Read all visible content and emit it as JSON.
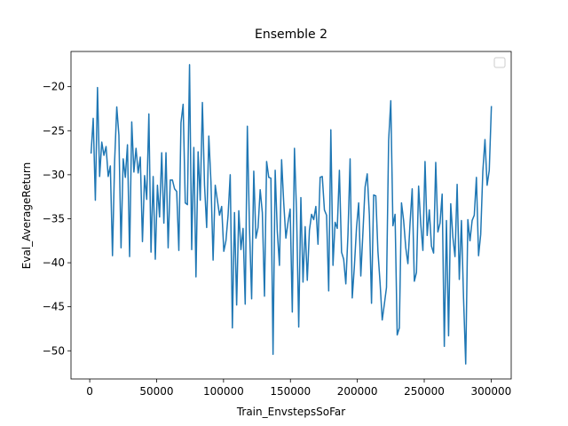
{
  "chart_data": {
    "type": "line",
    "title": "Ensemble 2",
    "x_label": "Train_EnvstepsSoFar",
    "y_label": "Eval_AverageReturn",
    "x": [
      1000,
      2600,
      4200,
      5800,
      7400,
      9000,
      10600,
      12200,
      13800,
      15400,
      17000,
      18600,
      20200,
      21800,
      23400,
      25000,
      26600,
      28200,
      29800,
      31400,
      33000,
      34600,
      36200,
      37800,
      39400,
      41000,
      42600,
      44200,
      45800,
      47400,
      49000,
      50600,
      52200,
      53800,
      55400,
      57000,
      58600,
      60200,
      61800,
      63400,
      65000,
      66600,
      68200,
      69800,
      71400,
      73000,
      74600,
      76200,
      77800,
      79400,
      81000,
      82600,
      84200,
      85800,
      87400,
      89000,
      90600,
      92200,
      93800,
      95400,
      97000,
      98600,
      100200,
      101800,
      103400,
      105000,
      106600,
      108200,
      109800,
      111400,
      113000,
      114600,
      116200,
      117800,
      119400,
      121000,
      122600,
      124200,
      125800,
      127400,
      129000,
      130600,
      132200,
      133800,
      135400,
      137000,
      138600,
      140200,
      141800,
      143400,
      145000,
      146600,
      148200,
      149800,
      151400,
      153000,
      154600,
      156200,
      157800,
      159400,
      161000,
      162600,
      164200,
      165800,
      167400,
      169000,
      170600,
      172200,
      173800,
      175400,
      177000,
      178600,
      180200,
      181800,
      183400,
      185000,
      186600,
      188200,
      189800,
      191400,
      193000,
      194600,
      196200,
      197800,
      199400,
      201000,
      202600,
      204200,
      205800,
      207400,
      209000,
      210600,
      212200,
      213800,
      215400,
      217000,
      218600,
      220200,
      221800,
      223400,
      225000,
      226600,
      228200,
      229800,
      231400,
      233000,
      234600,
      236200,
      237800,
      239400,
      241000,
      242600,
      244200,
      245800,
      247400,
      249000,
      250600,
      252200,
      253800,
      255400,
      257000,
      258600,
      260200,
      261800,
      263400,
      265000,
      266600,
      268200,
      269800,
      271400,
      273000,
      274600,
      276200,
      277800,
      279400,
      281000,
      282600,
      284200,
      285800,
      287400,
      289000,
      290600,
      292200,
      293800,
      295400,
      297000,
      298600,
      300200
    ],
    "series": [
      {
        "color": "#1f77b4",
        "values": [
          -27.6,
          -23.6,
          -32.9,
          -20.1,
          -30.2,
          -26.3,
          -27.8,
          -26.8,
          -30.2,
          -29,
          -39.2,
          -28.5,
          -22.3,
          -25.5,
          -38.3,
          -28.2,
          -30.3,
          -26.6,
          -39.3,
          -24,
          -29.7,
          -27,
          -29.8,
          -28,
          -37.6,
          -30.1,
          -32.8,
          -23.1,
          -38.8,
          -30.2,
          -39.6,
          -31.2,
          -34.8,
          -27.5,
          -35.5,
          -27.5,
          -38.3,
          -30.6,
          -30.6,
          -31.6,
          -31.9,
          -38.6,
          -24.1,
          -22,
          -33.2,
          -33.4,
          -17.5,
          -38.5,
          -26.9,
          -41.6,
          -27.4,
          -32.9,
          -21.8,
          -31.2,
          -36,
          -25.6,
          -30.8,
          -39.7,
          -31.2,
          -32.9,
          -34.6,
          -33.6,
          -38.7,
          -37.5,
          -34.6,
          -30,
          -47.4,
          -34.3,
          -44.8,
          -34.1,
          -38.5,
          -36.1,
          -44.7,
          -24.5,
          -36,
          -44.1,
          -29.6,
          -37.2,
          -36,
          -31.7,
          -34.3,
          -43.8,
          -28.5,
          -30.3,
          -30.4,
          -50.4,
          -29.5,
          -36.5,
          -40.3,
          -28.3,
          -33.2,
          -37.2,
          -35.4,
          -33.9,
          -45.6,
          -27,
          -34.4,
          -47.3,
          -32.6,
          -42.2,
          -35.9,
          -42,
          -36.3,
          -34.5,
          -35.1,
          -33.6,
          -37.9,
          -30.3,
          -30.2,
          -34,
          -34.6,
          -43.2,
          -24.9,
          -40.3,
          -35.4,
          -36.1,
          -29.5,
          -38.8,
          -39.6,
          -42.4,
          -36.8,
          -28.2,
          -44,
          -40.4,
          -36,
          -33.2,
          -41.5,
          -36.5,
          -31.4,
          -29.9,
          -34.6,
          -44.6,
          -32.3,
          -32.4,
          -38.7,
          -42.3,
          -46.5,
          -44.7,
          -42.8,
          -26.1,
          -21.6,
          -35.8,
          -34.5,
          -48.2,
          -47.4,
          -33.2,
          -35.2,
          -38.3,
          -40.1,
          -35.5,
          -31.6,
          -42.1,
          -41.1,
          -31.3,
          -35.6,
          -38.6,
          -28.5,
          -36.9,
          -34,
          -38.1,
          -38.9,
          -28.6,
          -36.5,
          -35.5,
          -32.2,
          -49.5,
          -35.2,
          -48.3,
          -33.3,
          -37.1,
          -39.3,
          -31.1,
          -41.9,
          -35.2,
          -44.1,
          -51.5,
          -35.1,
          -37.5,
          -35.2,
          -34.6,
          -30.3,
          -39.2,
          -36.8,
          -29.6,
          -26,
          -31.2,
          -29.5,
          -22.2
        ]
      }
    ],
    "xlim": [
      -14000,
      315000
    ],
    "ylim": [
      -53.2,
      -16.0
    ],
    "xticks": [
      0,
      50000,
      100000,
      150000,
      200000,
      250000,
      300000
    ],
    "yticks": [
      {
        "value": -50,
        "label": "−50"
      },
      {
        "value": -45,
        "label": "−45"
      },
      {
        "value": -40,
        "label": "−40"
      },
      {
        "value": -35,
        "label": "−35"
      },
      {
        "value": -30,
        "label": "−30"
      },
      {
        "value": -25,
        "label": "−25"
      },
      {
        "value": -20,
        "label": "−20"
      }
    ]
  }
}
